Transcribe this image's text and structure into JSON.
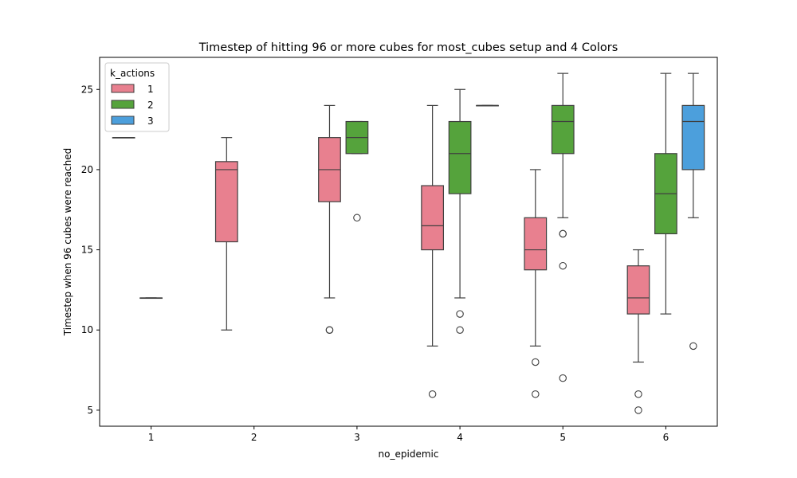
{
  "chart_data": {
    "type": "box",
    "title": "Timestep of hitting 96 or more cubes for most_cubes setup and 4 Colors",
    "xlabel": "no_epidemic",
    "ylabel": "Timestep when 96 cubes were reached",
    "categories": [
      "1",
      "2",
      "3",
      "4",
      "5",
      "6"
    ],
    "ylim": [
      4,
      27
    ],
    "yticks": [
      5,
      10,
      15,
      20,
      25
    ],
    "legend": {
      "title": "k_actions",
      "placement": "top-left",
      "entries": [
        "1",
        "2",
        "3"
      ]
    },
    "series": [
      {
        "name": "1",
        "color": "#e8808f",
        "boxes": [
          {
            "category": "1",
            "whisker_low": 22,
            "q1": 22,
            "median": 22,
            "q3": 22,
            "whisker_high": 22,
            "outliers": []
          },
          {
            "category": "2",
            "whisker_low": 10,
            "q1": 15.5,
            "median": 20,
            "q3": 20.5,
            "whisker_high": 22,
            "outliers": []
          },
          {
            "category": "3",
            "whisker_low": 12,
            "q1": 18,
            "median": 20,
            "q3": 22,
            "whisker_high": 24,
            "outliers": [
              10,
              10
            ]
          },
          {
            "category": "4",
            "whisker_low": 9,
            "q1": 15,
            "median": 16.5,
            "q3": 19,
            "whisker_high": 24,
            "outliers": [
              6
            ]
          },
          {
            "category": "5",
            "whisker_low": 9,
            "q1": 13.75,
            "median": 15,
            "q3": 17,
            "whisker_high": 20,
            "outliers": [
              8,
              6
            ]
          },
          {
            "category": "6",
            "whisker_low": 8,
            "q1": 11,
            "median": 12,
            "q3": 14,
            "whisker_high": 15,
            "outliers": [
              6,
              5
            ]
          }
        ]
      },
      {
        "name": "2",
        "color": "#55a33c",
        "boxes": [
          {
            "category": "1",
            "whisker_low": 12,
            "q1": 12,
            "median": 12,
            "q3": 12,
            "whisker_high": 12,
            "outliers": []
          },
          {
            "category": "3",
            "whisker_low": 21,
            "q1": 21,
            "median": 22,
            "q3": 23,
            "whisker_high": 23,
            "outliers": [
              17
            ]
          },
          {
            "category": "4",
            "whisker_low": 12,
            "q1": 18.5,
            "median": 21,
            "q3": 23,
            "whisker_high": 25,
            "outliers": [
              11,
              10
            ]
          },
          {
            "category": "5",
            "whisker_low": 17,
            "q1": 21,
            "median": 23,
            "q3": 24,
            "whisker_high": 26,
            "outliers": [
              16,
              16,
              14,
              7
            ]
          },
          {
            "category": "6",
            "whisker_low": 11,
            "q1": 16,
            "median": 18.5,
            "q3": 21,
            "whisker_high": 26,
            "outliers": []
          }
        ]
      },
      {
        "name": "3",
        "color": "#4c9fdc",
        "boxes": [
          {
            "category": "4",
            "whisker_low": 24,
            "q1": 24,
            "median": 24,
            "q3": 24,
            "whisker_high": 24,
            "outliers": []
          },
          {
            "category": "6",
            "whisker_low": 17,
            "q1": 20,
            "median": 23,
            "q3": 24,
            "whisker_high": 26,
            "outliers": [
              9
            ]
          }
        ]
      }
    ]
  }
}
